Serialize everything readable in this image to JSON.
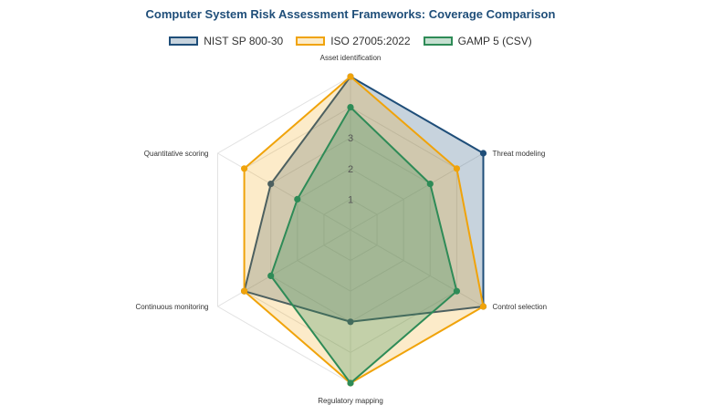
{
  "chart_data": {
    "type": "radar",
    "title": "Computer System Risk Assessment Frameworks: Coverage Comparison",
    "axes": [
      "Asset identification",
      "Threat modeling",
      "Control selection",
      "Regulatory mapping",
      "Continuous monitoring",
      "Quantitative scoring"
    ],
    "r_ticks": [
      "1",
      "2",
      "3"
    ],
    "r_range": [
      0,
      5
    ],
    "grid": true,
    "legend_position": "top",
    "series": [
      {
        "name": "NIST SP 800-30",
        "values": [
          5,
          5,
          5,
          3,
          4,
          3
        ],
        "color": "#1f4e79",
        "fill": "rgba(31, 78, 121, 0.25)"
      },
      {
        "name": "ISO 27005:2022",
        "values": [
          5,
          4,
          5,
          5,
          4,
          4
        ],
        "color": "#f0a30a",
        "fill": "rgba(240, 163, 10, 0.22)"
      },
      {
        "name": "GAMP 5 (CSV)",
        "values": [
          4,
          3,
          4,
          5,
          3,
          2
        ],
        "color": "#2e8b57",
        "fill": "rgba(46, 139, 87, 0.28)"
      }
    ]
  }
}
